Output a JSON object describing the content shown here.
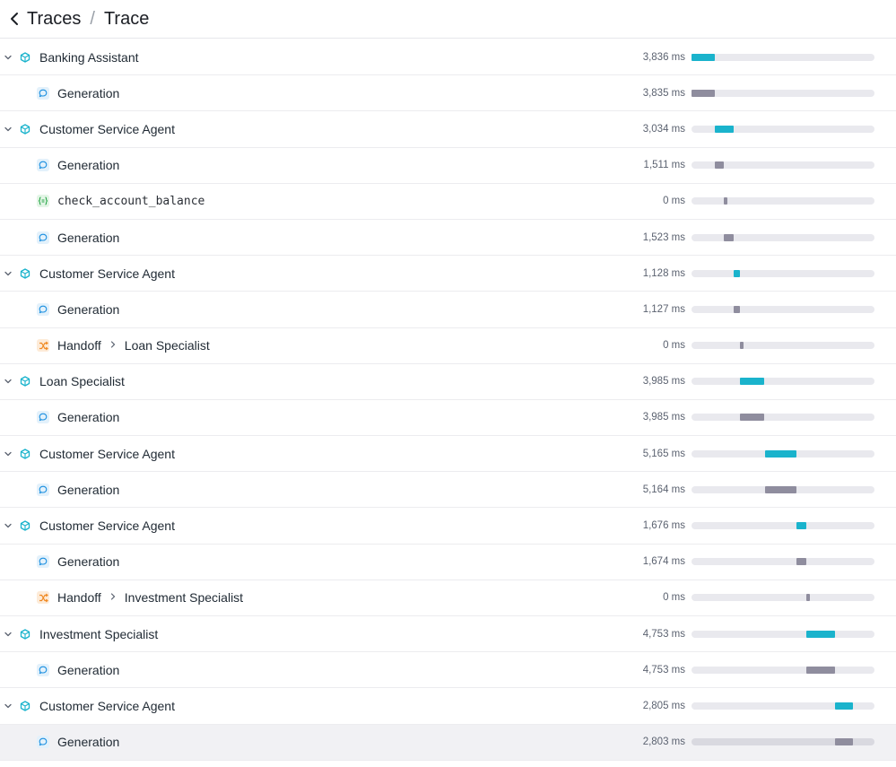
{
  "header": {
    "back_icon": "chevron-left-icon",
    "breadcrumb_parent": "Traces",
    "breadcrumb_separator": "/",
    "breadcrumb_current": "Trace"
  },
  "colors": {
    "agent": "#1ab3cc",
    "generation": "#8f8d9e",
    "function": "#8f8d9e",
    "handoff": "#8f8d9e",
    "agent_icon": "#1ab3cc",
    "generation_icon": "#1a8fe0",
    "function_icon": "#2ba84a",
    "handoff_icon": "#f08a24"
  },
  "timeline": {
    "total_ms": 30000
  },
  "rows": [
    {
      "kind": "agent",
      "label": "Banking Assistant",
      "duration": "3,836 ms",
      "start_ms": 0,
      "dur_ms": 3836,
      "expanded": true
    },
    {
      "kind": "generation",
      "label": "Generation",
      "duration": "3,835 ms",
      "start_ms": 0,
      "dur_ms": 3835
    },
    {
      "kind": "agent",
      "label": "Customer Service Agent",
      "duration": "3,034 ms",
      "start_ms": 3836,
      "dur_ms": 3034,
      "expanded": true
    },
    {
      "kind": "generation",
      "label": "Generation",
      "duration": "1,511 ms",
      "start_ms": 3836,
      "dur_ms": 1511
    },
    {
      "kind": "function",
      "label": "check_account_balance",
      "duration": "0 ms",
      "start_ms": 5350,
      "dur_ms": 0
    },
    {
      "kind": "generation",
      "label": "Generation",
      "duration": "1,523 ms",
      "start_ms": 5350,
      "dur_ms": 1523
    },
    {
      "kind": "agent",
      "label": "Customer Service Agent",
      "duration": "1,128 ms",
      "start_ms": 6870,
      "dur_ms": 1128,
      "expanded": true
    },
    {
      "kind": "generation",
      "label": "Generation",
      "duration": "1,127 ms",
      "start_ms": 6870,
      "dur_ms": 1127
    },
    {
      "kind": "handoff",
      "label": "Handoff",
      "target": "Loan Specialist",
      "duration": "0 ms",
      "start_ms": 7990,
      "dur_ms": 0
    },
    {
      "kind": "agent",
      "label": "Loan Specialist",
      "duration": "3,985 ms",
      "start_ms": 8000,
      "dur_ms": 3985,
      "expanded": true
    },
    {
      "kind": "generation",
      "label": "Generation",
      "duration": "3,985 ms",
      "start_ms": 8000,
      "dur_ms": 3985
    },
    {
      "kind": "agent",
      "label": "Customer Service Agent",
      "duration": "5,165 ms",
      "start_ms": 12000,
      "dur_ms": 5165,
      "expanded": true
    },
    {
      "kind": "generation",
      "label": "Generation",
      "duration": "5,164 ms",
      "start_ms": 12000,
      "dur_ms": 5164
    },
    {
      "kind": "agent",
      "label": "Customer Service Agent",
      "duration": "1,676 ms",
      "start_ms": 17165,
      "dur_ms": 1676,
      "expanded": true
    },
    {
      "kind": "generation",
      "label": "Generation",
      "duration": "1,674 ms",
      "start_ms": 17165,
      "dur_ms": 1674
    },
    {
      "kind": "handoff",
      "label": "Handoff",
      "target": "Investment Specialist",
      "duration": "0 ms",
      "start_ms": 18840,
      "dur_ms": 0
    },
    {
      "kind": "agent",
      "label": "Investment Specialist",
      "duration": "4,753 ms",
      "start_ms": 18850,
      "dur_ms": 4753,
      "expanded": true
    },
    {
      "kind": "generation",
      "label": "Generation",
      "duration": "4,753 ms",
      "start_ms": 18850,
      "dur_ms": 4753
    },
    {
      "kind": "agent",
      "label": "Customer Service Agent",
      "duration": "2,805 ms",
      "start_ms": 23600,
      "dur_ms": 2805,
      "expanded": true
    },
    {
      "kind": "generation",
      "label": "Generation",
      "duration": "2,803 ms",
      "start_ms": 23600,
      "dur_ms": 2803,
      "selected": true
    }
  ]
}
